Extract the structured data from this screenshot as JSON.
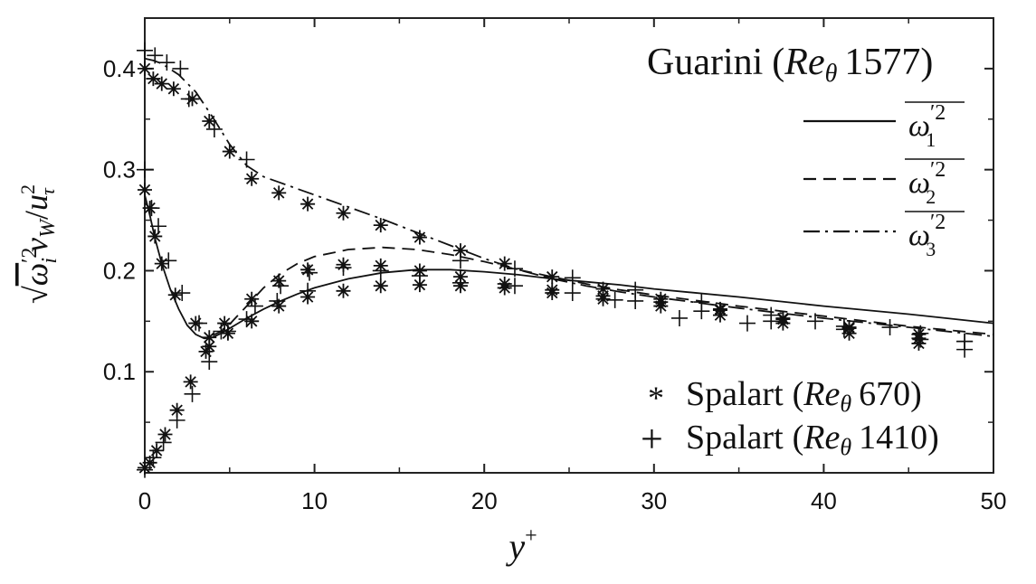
{
  "chart_data": {
    "type": "line",
    "xlabel_var": "y",
    "xlabel_sup": "+",
    "ylabel": {
      "prefix": "√",
      "omega": "ω",
      "omega_prime": "′2",
      "sub_i": "i",
      "nu": "ν",
      "nu_sub": "W",
      "slash": "/",
      "u": "u",
      "u_sup": "2",
      "u_sub": "τ"
    },
    "xlim": [
      0,
      50
    ],
    "ylim": [
      0.0,
      0.45
    ],
    "xticks": [
      "0",
      "10",
      "20",
      "30",
      "40",
      "50"
    ],
    "yticks": [
      "0.1",
      "0.2",
      "0.3",
      "0.4"
    ],
    "ytick_values": [
      0.1,
      0.2,
      0.3,
      0.4
    ],
    "xtick_values": [
      0,
      10,
      20,
      30,
      40,
      50
    ],
    "legend_title": {
      "name": "Guarini",
      "paren_open": "(",
      "re": "Re",
      "theta": "θ",
      "num": "1577",
      "paren_close": ")"
    },
    "legend_lines": [
      {
        "style": "solid",
        "omega": "ω",
        "prime": "′2",
        "sub": "1"
      },
      {
        "style": "dashed",
        "omega": "ω",
        "prime": "′2",
        "sub": "2"
      },
      {
        "style": "dashdot",
        "omega": "ω",
        "prime": "′2",
        "sub": "3"
      }
    ],
    "legend_markers": [
      {
        "marker": "*",
        "label": "Spalart",
        "re": "Re",
        "theta": "θ",
        "num": "670"
      },
      {
        "marker": "+",
        "label": "Spalart",
        "re": "Re",
        "theta": "θ",
        "num": "1410"
      }
    ],
    "series": [
      {
        "style": "solid",
        "x": [
          0,
          0.3,
          0.6,
          1,
          1.5,
          2,
          2.5,
          3,
          3.5,
          4,
          4.5,
          5,
          5.5,
          6,
          7,
          8,
          9,
          10,
          12,
          14,
          16,
          18,
          20,
          22,
          24,
          26,
          28,
          30,
          35,
          40,
          45,
          50
        ],
        "y": [
          0.275,
          0.255,
          0.232,
          0.207,
          0.182,
          0.162,
          0.146,
          0.137,
          0.133,
          0.134,
          0.138,
          0.143,
          0.148,
          0.153,
          0.162,
          0.17,
          0.177,
          0.183,
          0.192,
          0.198,
          0.201,
          0.201,
          0.199,
          0.196,
          0.192,
          0.189,
          0.186,
          0.182,
          0.174,
          0.165,
          0.157,
          0.148
        ]
      },
      {
        "style": "dashed",
        "x": [
          4,
          4.5,
          5,
          5.5,
          6,
          7,
          8,
          9,
          10,
          12,
          14,
          16,
          18,
          20,
          22,
          24,
          26,
          28,
          30,
          35,
          40,
          45,
          50
        ],
        "y": [
          0.136,
          0.14,
          0.147,
          0.156,
          0.165,
          0.183,
          0.197,
          0.207,
          0.214,
          0.221,
          0.223,
          0.221,
          0.216,
          0.209,
          0.201,
          0.194,
          0.187,
          0.181,
          0.176,
          0.165,
          0.155,
          0.145,
          0.137
        ]
      },
      {
        "style": "dashdot",
        "x": [
          0,
          0.5,
          1,
          2,
          3,
          4,
          5,
          6,
          7,
          8,
          9,
          10,
          12,
          14,
          16,
          18,
          20,
          22,
          24,
          26,
          28,
          30,
          35,
          40,
          45,
          50
        ],
        "y": [
          0.41,
          0.408,
          0.405,
          0.394,
          0.377,
          0.352,
          0.325,
          0.304,
          0.293,
          0.287,
          0.281,
          0.275,
          0.263,
          0.251,
          0.238,
          0.225,
          0.212,
          0.201,
          0.192,
          0.185,
          0.179,
          0.174,
          0.163,
          0.153,
          0.144,
          0.135
        ]
      }
    ],
    "spalart_670": [
      [
        0,
        0.4
      ],
      [
        0.5,
        0.39
      ],
      [
        1,
        0.385
      ],
      [
        1.7,
        0.38
      ],
      [
        2.8,
        0.37
      ],
      [
        3.8,
        0.348
      ],
      [
        5,
        0.318
      ],
      [
        6.3,
        0.291
      ],
      [
        7.9,
        0.277
      ],
      [
        9.6,
        0.266
      ],
      [
        11.7,
        0.257
      ],
      [
        13.9,
        0.245
      ],
      [
        16.2,
        0.233
      ],
      [
        18.6,
        0.22
      ],
      [
        21.2,
        0.207
      ],
      [
        24.0,
        0.194
      ],
      [
        27,
        0.182
      ],
      [
        30.4,
        0.172
      ],
      [
        33.9,
        0.161
      ],
      [
        37.6,
        0.152
      ],
      [
        41.5,
        0.144
      ],
      [
        45.6,
        0.137
      ],
      [
        0,
        0.28
      ],
      [
        0.3,
        0.262
      ],
      [
        0.6,
        0.234
      ],
      [
        1,
        0.207
      ],
      [
        1.8,
        0.176
      ],
      [
        3,
        0.148
      ],
      [
        3.8,
        0.134
      ],
      [
        0,
        0.005
      ],
      [
        0.3,
        0.01
      ],
      [
        0.7,
        0.022
      ],
      [
        1.2,
        0.038
      ],
      [
        1.9,
        0.062
      ],
      [
        2.7,
        0.09
      ],
      [
        3.6,
        0.12
      ],
      [
        4.7,
        0.148
      ],
      [
        6.3,
        0.172
      ],
      [
        7.9,
        0.19
      ],
      [
        9.6,
        0.201
      ],
      [
        11.7,
        0.206
      ],
      [
        13.9,
        0.205
      ],
      [
        16.2,
        0.2
      ],
      [
        18.6,
        0.194
      ],
      [
        21.2,
        0.187
      ],
      [
        24.0,
        0.181
      ],
      [
        27,
        0.175
      ],
      [
        30.4,
        0.169
      ],
      [
        33.9,
        0.162
      ],
      [
        37.6,
        0.153
      ],
      [
        41.5,
        0.143
      ],
      [
        45.6,
        0.133
      ],
      [
        3.8,
        0.125
      ],
      [
        4.9,
        0.138
      ],
      [
        6.3,
        0.15
      ],
      [
        7.9,
        0.165
      ],
      [
        9.6,
        0.174
      ],
      [
        11.7,
        0.18
      ],
      [
        13.9,
        0.185
      ],
      [
        16.2,
        0.186
      ],
      [
        18.6,
        0.185
      ],
      [
        21.2,
        0.183
      ],
      [
        24.0,
        0.178
      ],
      [
        27,
        0.172
      ],
      [
        30.4,
        0.165
      ],
      [
        33.9,
        0.156
      ],
      [
        37.6,
        0.148
      ],
      [
        41.5,
        0.138
      ],
      [
        45.6,
        0.128
      ]
    ],
    "spalart_1410": [
      [
        0,
        0.418
      ],
      [
        0.6,
        0.413
      ],
      [
        1.3,
        0.406
      ],
      [
        2.1,
        0.4
      ],
      [
        2.6,
        0.37
      ],
      [
        4.1,
        0.34
      ],
      [
        6,
        0.31
      ],
      [
        0,
        0.3
      ],
      [
        0.4,
        0.262
      ],
      [
        0.8,
        0.244
      ],
      [
        1.4,
        0.21
      ],
      [
        2.2,
        0.178
      ],
      [
        3.2,
        0.148
      ],
      [
        4.5,
        0.14
      ],
      [
        6,
        0.152
      ],
      [
        7.8,
        0.17
      ],
      [
        9.6,
        0.18
      ],
      [
        0,
        0.003
      ],
      [
        0.5,
        0.015
      ],
      [
        1.1,
        0.03
      ],
      [
        1.9,
        0.052
      ],
      [
        2.8,
        0.078
      ],
      [
        3.8,
        0.11
      ],
      [
        4.9,
        0.14
      ],
      [
        6.5,
        0.165
      ],
      [
        8,
        0.185
      ],
      [
        9.7,
        0.198
      ],
      [
        11.7,
        0.203
      ],
      [
        13.9,
        0.2
      ],
      [
        16.2,
        0.195
      ],
      [
        18.6,
        0.188
      ],
      [
        21.8,
        0.185
      ],
      [
        25.2,
        0.178
      ],
      [
        28.9,
        0.17
      ],
      [
        32.8,
        0.16
      ],
      [
        36.9,
        0.15
      ],
      [
        41.2,
        0.142
      ],
      [
        45.7,
        0.132
      ],
      [
        48.3,
        0.122
      ],
      [
        18.6,
        0.21
      ],
      [
        21.8,
        0.202
      ],
      [
        25.2,
        0.193
      ],
      [
        28.9,
        0.181
      ],
      [
        32.8,
        0.169
      ],
      [
        36.9,
        0.156
      ],
      [
        41.2,
        0.145
      ],
      [
        45.7,
        0.138
      ],
      [
        48.3,
        0.13
      ],
      [
        27.7,
        0.171
      ],
      [
        31.5,
        0.153
      ],
      [
        35.5,
        0.148
      ],
      [
        39.5,
        0.15
      ],
      [
        43.9,
        0.144
      ],
      [
        48.3,
        0.13
      ]
    ]
  }
}
